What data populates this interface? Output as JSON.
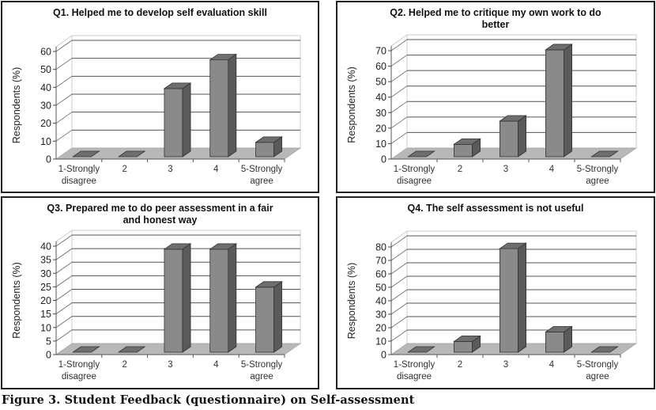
{
  "caption": "Figure 3.  Student Feedback (questionnaire) on Self-assessment",
  "colors": {
    "bar_front": "#8a8a8a",
    "bar_side": "#5a5a5a",
    "bar_top": "#6e6e6e",
    "floor": "#b8b8b8",
    "gridline": "#555555",
    "wall": "#ffffff"
  },
  "chart_data": [
    {
      "type": "bar",
      "title_lines": [
        "Q1. Helped me to develop self evaluation skill"
      ],
      "categories": [
        [
          "1-Strongly",
          "disagree"
        ],
        [
          "2"
        ],
        [
          "3"
        ],
        [
          "4"
        ],
        [
          "5-Strongly",
          "agree"
        ]
      ],
      "values": [
        0,
        0,
        38,
        54,
        8
      ],
      "xlabel": "",
      "ylabel": "Respondents (%)",
      "ylim": [
        0,
        60
      ],
      "yticks": [
        0,
        10,
        20,
        30,
        40,
        50,
        60
      ],
      "grid": true,
      "legend": "none"
    },
    {
      "type": "bar",
      "title_lines": [
        "Q2. Helped me to critique my own work to do",
        "better"
      ],
      "categories": [
        [
          "1-Strongly",
          "disagree"
        ],
        [
          "2"
        ],
        [
          "3"
        ],
        [
          "4"
        ],
        [
          "5-Strongly",
          "agree"
        ]
      ],
      "values": [
        0,
        8,
        23,
        69,
        0
      ],
      "xlabel": "",
      "ylabel": "Respondents (%)",
      "ylim": [
        0,
        70
      ],
      "yticks": [
        0,
        10,
        20,
        30,
        40,
        50,
        60,
        70
      ],
      "grid": true,
      "legend": "none"
    },
    {
      "type": "bar",
      "title_lines": [
        "Q3. Prepared me to do peer assessment in a fair",
        "and honest way"
      ],
      "categories": [
        [
          "1-Strongly",
          "disagree"
        ],
        [
          "2"
        ],
        [
          "3"
        ],
        [
          "4"
        ],
        [
          "5-Strongly",
          "agree"
        ]
      ],
      "values": [
        0,
        0,
        38,
        38,
        24
      ],
      "xlabel": "",
      "ylabel": "Respondents (%)",
      "ylim": [
        0,
        40
      ],
      "yticks": [
        0,
        5,
        10,
        15,
        20,
        25,
        30,
        35,
        40
      ],
      "grid": true,
      "legend": "none"
    },
    {
      "type": "bar",
      "title_lines": [
        "Q4. The self assessment is not useful"
      ],
      "categories": [
        [
          "1-Strongly",
          "disagree"
        ],
        [
          "2"
        ],
        [
          "3"
        ],
        [
          "4"
        ],
        [
          "5-Strongly",
          "agree"
        ]
      ],
      "values": [
        0,
        8,
        77,
        15,
        0
      ],
      "xlabel": "",
      "ylabel": "Respondents (%)",
      "ylim": [
        0,
        80
      ],
      "yticks": [
        0,
        10,
        20,
        30,
        40,
        50,
        60,
        70,
        80
      ],
      "grid": true,
      "legend": "none"
    }
  ]
}
